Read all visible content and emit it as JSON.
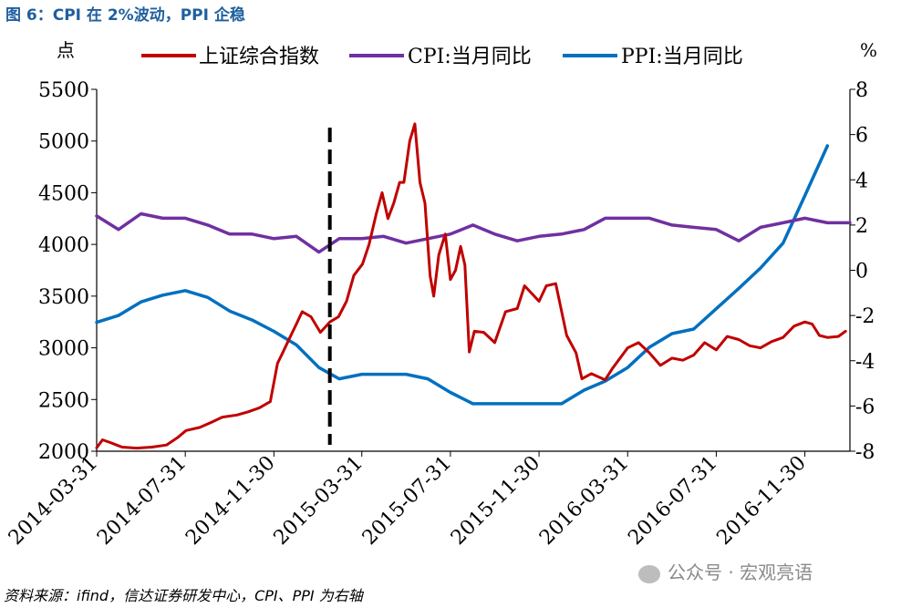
{
  "figure_title": "图 6：CPI 在 2%波动，PPI 企稳",
  "source_note": "资料来源：ifind，信达证券研发中心，CPI、PPI 为右轴",
  "watermark": "公众号 · 宏观亮语",
  "chart_data": {
    "type": "line",
    "left_axis_unit": "点",
    "right_axis_unit": "%",
    "left_ylim": [
      2000,
      5500
    ],
    "left_ticks": [
      "5500",
      "5000",
      "4500",
      "4000",
      "3500",
      "3000",
      "2500",
      "2000"
    ],
    "right_ylim": [
      -8,
      8
    ],
    "right_ticks": [
      "8",
      "6",
      "4",
      "2",
      "0",
      "-2",
      "-4",
      "-6",
      "-8"
    ],
    "x_tick_labels": [
      "2014-03-31",
      "2014-07-31",
      "2014-11-30",
      "2015-03-31",
      "2015-07-31",
      "2015-11-30",
      "2016-03-31",
      "2016-07-31",
      "2016-11-30"
    ],
    "x_range": [
      "2014-03-31",
      "2017-01-31"
    ],
    "vertical_marker_date": "2015-02-15",
    "grid": false,
    "legend_position": "top",
    "colors": {
      "shanghai": "#c00000",
      "cpi": "#7030a0",
      "ppi": "#0070c0",
      "marker": "#000000"
    },
    "series": [
      {
        "name": "上证综合指数",
        "axis": "left",
        "key": "shanghai",
        "points": [
          [
            "2014-03-31",
            2033
          ],
          [
            "2014-04-08",
            2110
          ],
          [
            "2014-04-20",
            2080
          ],
          [
            "2014-05-05",
            2040
          ],
          [
            "2014-05-25",
            2030
          ],
          [
            "2014-06-15",
            2040
          ],
          [
            "2014-07-05",
            2060
          ],
          [
            "2014-07-20",
            2130
          ],
          [
            "2014-08-01",
            2200
          ],
          [
            "2014-08-20",
            2230
          ],
          [
            "2014-09-05",
            2280
          ],
          [
            "2014-09-20",
            2330
          ],
          [
            "2014-10-10",
            2350
          ],
          [
            "2014-10-25",
            2380
          ],
          [
            "2014-11-10",
            2420
          ],
          [
            "2014-11-25",
            2480
          ],
          [
            "2014-12-05",
            2850
          ],
          [
            "2014-12-12",
            2950
          ],
          [
            "2014-12-22",
            3100
          ],
          [
            "2014-12-31",
            3230
          ],
          [
            "2015-01-08",
            3350
          ],
          [
            "2015-01-20",
            3300
          ],
          [
            "2015-02-02",
            3150
          ],
          [
            "2015-02-15",
            3250
          ],
          [
            "2015-02-27",
            3300
          ],
          [
            "2015-03-10",
            3450
          ],
          [
            "2015-03-20",
            3700
          ],
          [
            "2015-04-01",
            3810
          ],
          [
            "2015-04-10",
            4000
          ],
          [
            "2015-04-20",
            4300
          ],
          [
            "2015-04-28",
            4500
          ],
          [
            "2015-05-06",
            4250
          ],
          [
            "2015-05-14",
            4400
          ],
          [
            "2015-05-22",
            4600
          ],
          [
            "2015-05-28",
            4600
          ],
          [
            "2015-06-05",
            5000
          ],
          [
            "2015-06-12",
            5166
          ],
          [
            "2015-06-19",
            4600
          ],
          [
            "2015-06-26",
            4400
          ],
          [
            "2015-07-03",
            3700
          ],
          [
            "2015-07-08",
            3500
          ],
          [
            "2015-07-15",
            3900
          ],
          [
            "2015-07-24",
            4100
          ],
          [
            "2015-07-31",
            3660
          ],
          [
            "2015-08-07",
            3750
          ],
          [
            "2015-08-14",
            3980
          ],
          [
            "2015-08-20",
            3800
          ],
          [
            "2015-08-26",
            2960
          ],
          [
            "2015-09-02",
            3160
          ],
          [
            "2015-09-15",
            3150
          ],
          [
            "2015-09-30",
            3050
          ],
          [
            "2015-10-15",
            3350
          ],
          [
            "2015-10-31",
            3380
          ],
          [
            "2015-11-10",
            3600
          ],
          [
            "2015-11-30",
            3450
          ],
          [
            "2015-12-10",
            3600
          ],
          [
            "2015-12-23",
            3620
          ],
          [
            "2016-01-07",
            3120
          ],
          [
            "2016-01-20",
            2950
          ],
          [
            "2016-01-28",
            2700
          ],
          [
            "2016-02-10",
            2750
          ],
          [
            "2016-02-29",
            2690
          ],
          [
            "2016-03-10",
            2800
          ],
          [
            "2016-03-31",
            3000
          ],
          [
            "2016-04-15",
            3050
          ],
          [
            "2016-04-30",
            2950
          ],
          [
            "2016-05-15",
            2830
          ],
          [
            "2016-05-31",
            2900
          ],
          [
            "2016-06-15",
            2880
          ],
          [
            "2016-06-30",
            2930
          ],
          [
            "2016-07-15",
            3050
          ],
          [
            "2016-07-31",
            2980
          ],
          [
            "2016-08-15",
            3110
          ],
          [
            "2016-08-31",
            3080
          ],
          [
            "2016-09-15",
            3020
          ],
          [
            "2016-09-30",
            3000
          ],
          [
            "2016-10-15",
            3060
          ],
          [
            "2016-10-31",
            3100
          ],
          [
            "2016-11-15",
            3210
          ],
          [
            "2016-11-30",
            3250
          ],
          [
            "2016-12-10",
            3230
          ],
          [
            "2016-12-20",
            3120
          ],
          [
            "2016-12-31",
            3100
          ],
          [
            "2017-01-15",
            3110
          ],
          [
            "2017-01-25",
            3160
          ]
        ]
      },
      {
        "name": "CPI:当月同比",
        "axis": "right",
        "key": "cpi",
        "points": [
          [
            "2014-03-31",
            2.4
          ],
          [
            "2014-04-30",
            1.8
          ],
          [
            "2014-05-31",
            2.5
          ],
          [
            "2014-06-30",
            2.3
          ],
          [
            "2014-07-31",
            2.3
          ],
          [
            "2014-08-31",
            2.0
          ],
          [
            "2014-09-30",
            1.6
          ],
          [
            "2014-10-31",
            1.6
          ],
          [
            "2014-11-30",
            1.4
          ],
          [
            "2014-12-31",
            1.5
          ],
          [
            "2015-01-31",
            0.8
          ],
          [
            "2015-02-28",
            1.4
          ],
          [
            "2015-03-31",
            1.4
          ],
          [
            "2015-04-30",
            1.5
          ],
          [
            "2015-05-31",
            1.2
          ],
          [
            "2015-06-30",
            1.4
          ],
          [
            "2015-07-31",
            1.6
          ],
          [
            "2015-08-31",
            2.0
          ],
          [
            "2015-09-30",
            1.6
          ],
          [
            "2015-10-31",
            1.3
          ],
          [
            "2015-11-30",
            1.5
          ],
          [
            "2015-12-31",
            1.6
          ],
          [
            "2016-01-31",
            1.8
          ],
          [
            "2016-02-29",
            2.3
          ],
          [
            "2016-03-31",
            2.3
          ],
          [
            "2016-04-30",
            2.3
          ],
          [
            "2016-05-31",
            2.0
          ],
          [
            "2016-06-30",
            1.9
          ],
          [
            "2016-07-31",
            1.8
          ],
          [
            "2016-08-31",
            1.3
          ],
          [
            "2016-09-30",
            1.9
          ],
          [
            "2016-10-31",
            2.1
          ],
          [
            "2016-11-30",
            2.3
          ],
          [
            "2016-12-31",
            2.1
          ],
          [
            "2017-01-31",
            2.1
          ]
        ]
      },
      {
        "name": "PPI:当月同比",
        "axis": "right",
        "key": "ppi",
        "points": [
          [
            "2014-03-31",
            -2.3
          ],
          [
            "2014-04-30",
            -2.0
          ],
          [
            "2014-05-31",
            -1.4
          ],
          [
            "2014-06-30",
            -1.1
          ],
          [
            "2014-07-31",
            -0.9
          ],
          [
            "2014-08-31",
            -1.2
          ],
          [
            "2014-09-30",
            -1.8
          ],
          [
            "2014-10-31",
            -2.2
          ],
          [
            "2014-11-30",
            -2.7
          ],
          [
            "2014-12-31",
            -3.3
          ],
          [
            "2015-01-31",
            -4.3
          ],
          [
            "2015-02-28",
            -4.8
          ],
          [
            "2015-03-31",
            -4.6
          ],
          [
            "2015-04-30",
            -4.6
          ],
          [
            "2015-05-31",
            -4.6
          ],
          [
            "2015-06-30",
            -4.8
          ],
          [
            "2015-07-31",
            -5.4
          ],
          [
            "2015-08-31",
            -5.9
          ],
          [
            "2015-09-30",
            -5.9
          ],
          [
            "2015-10-31",
            -5.9
          ],
          [
            "2015-11-30",
            -5.9
          ],
          [
            "2015-12-31",
            -5.9
          ],
          [
            "2016-01-31",
            -5.3
          ],
          [
            "2016-02-29",
            -4.9
          ],
          [
            "2016-03-31",
            -4.3
          ],
          [
            "2016-04-30",
            -3.4
          ],
          [
            "2016-05-31",
            -2.8
          ],
          [
            "2016-06-30",
            -2.6
          ],
          [
            "2016-07-31",
            -1.7
          ],
          [
            "2016-08-31",
            -0.8
          ],
          [
            "2016-09-30",
            0.1
          ],
          [
            "2016-10-31",
            1.2
          ],
          [
            "2016-11-30",
            3.3
          ],
          [
            "2016-12-31",
            5.5
          ]
        ]
      }
    ]
  }
}
